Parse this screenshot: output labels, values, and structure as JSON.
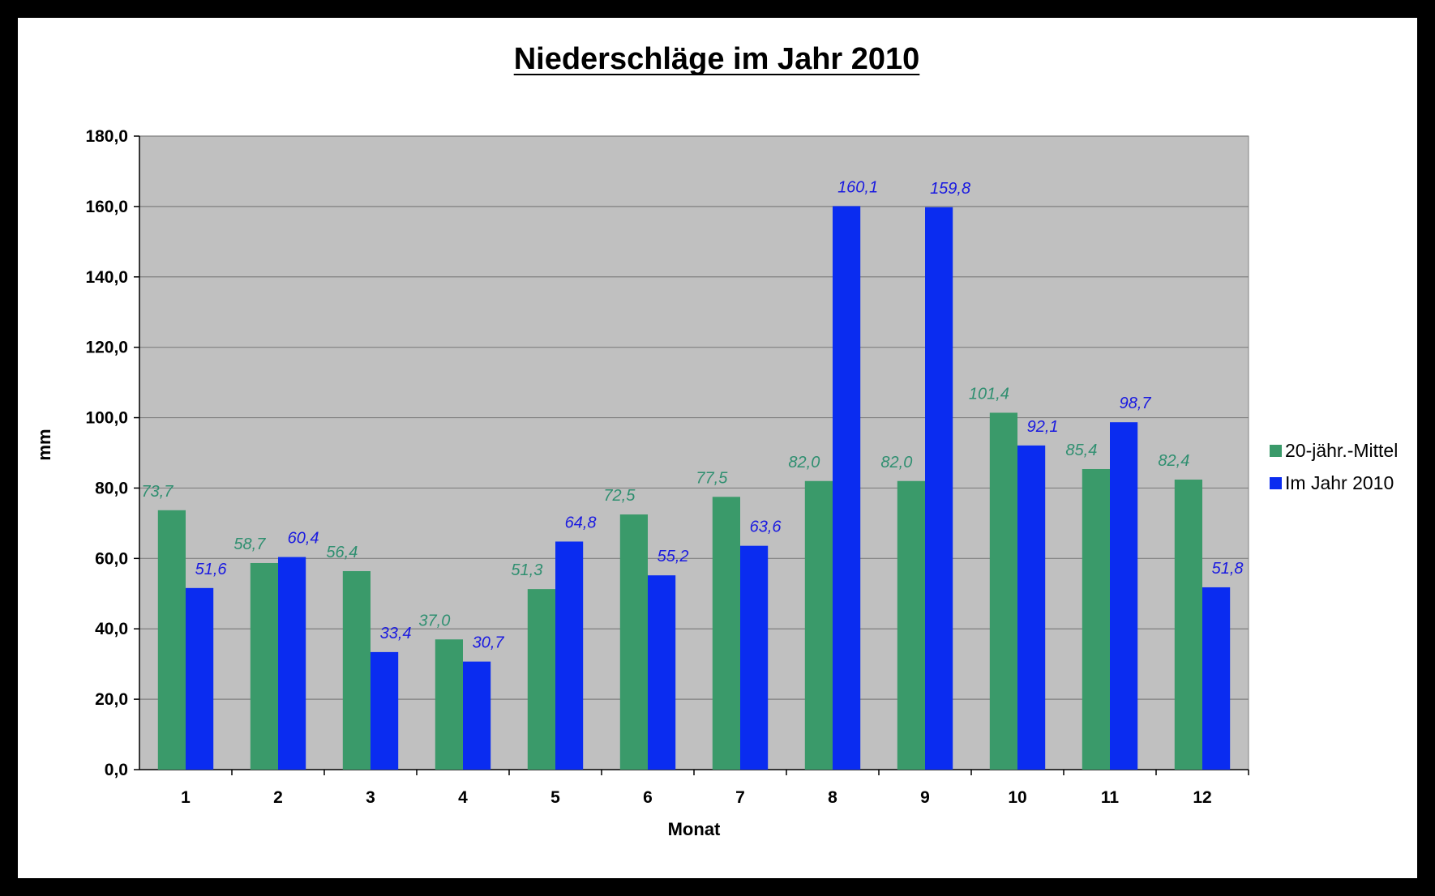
{
  "chart_data": {
    "type": "bar",
    "title": "Niederschläge im Jahr 2010",
    "xlabel": "Monat",
    "ylabel": "mm",
    "ylim": [
      0,
      180
    ],
    "ytick_step": 20,
    "ytick_labels": [
      "0,0",
      "20,0",
      "40,0",
      "60,0",
      "80,0",
      "100,0",
      "120,0",
      "140,0",
      "160,0",
      "180,0"
    ],
    "categories": [
      "1",
      "2",
      "3",
      "4",
      "5",
      "6",
      "7",
      "8",
      "9",
      "10",
      "11",
      "12"
    ],
    "grid": true,
    "legend_position": "right",
    "series": [
      {
        "name": "20-jähr.-Mittel",
        "color": "#3a9a6a",
        "label_color": "#2f8f70",
        "values": [
          73.7,
          58.7,
          56.4,
          37.0,
          51.3,
          72.5,
          77.5,
          82.0,
          82.0,
          101.4,
          85.4,
          82.4
        ],
        "labels": [
          "73,7",
          "58,7",
          "56,4",
          "37,0",
          "51,3",
          "72,5",
          "77,5",
          "82,0",
          "82,0",
          "101,4",
          "85,4",
          "82,4"
        ]
      },
      {
        "name": "Im Jahr 2010",
        "color": "#0a2cf0",
        "label_color": "#1a1ae0",
        "values": [
          51.6,
          60.4,
          33.4,
          30.7,
          64.8,
          55.2,
          63.6,
          160.1,
          159.8,
          92.1,
          98.7,
          51.8
        ],
        "labels": [
          "51,6",
          "60,4",
          "33,4",
          "30,7",
          "64,8",
          "55,2",
          "63,6",
          "160,1",
          "159,8",
          "92,1",
          "98,7",
          "51,8"
        ]
      }
    ],
    "plot_background": "#c0c0c0",
    "grid_color": "#808080"
  }
}
